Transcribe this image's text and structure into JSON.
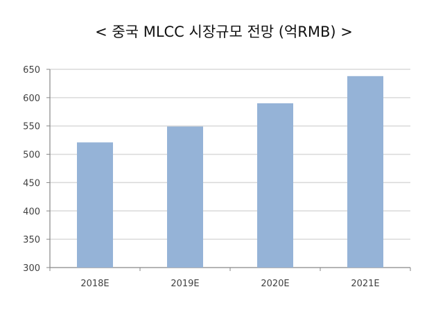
{
  "title": "< 중국 MLCC 시장규모 전망 (억RMB) >",
  "chart_data": {
    "type": "bar",
    "title": "< 중국 MLCC 시장규모 전망 (억RMB) >",
    "categories": [
      "2018E",
      "2019E",
      "2020E",
      "2021E"
    ],
    "values": [
      521,
      549,
      590,
      638
    ],
    "xlabel": "",
    "ylabel": "",
    "ylim": [
      300,
      650
    ],
    "yticks": [
      300,
      350,
      400,
      450,
      500,
      550,
      600,
      650
    ],
    "grid": true,
    "legend": null,
    "bar_color": "#95b3d7"
  },
  "colors": {
    "bar": "#95b3d7",
    "grid": "#d9d9d9",
    "axis": "#868686",
    "text": "#404040"
  }
}
